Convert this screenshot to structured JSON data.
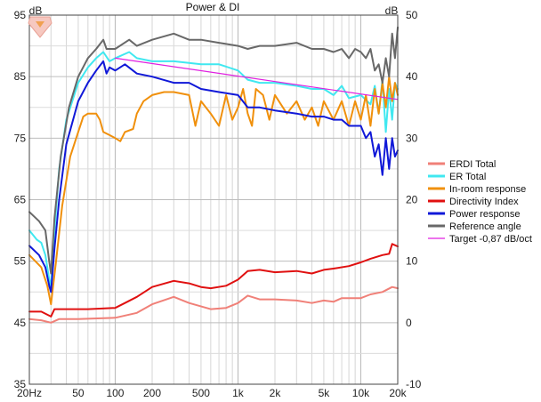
{
  "chart_data": {
    "type": "line",
    "title": "Power & DI",
    "ylabel_left": "dB",
    "ylabel_right": "dB",
    "x_scale": "log",
    "xlim": [
      20,
      20000
    ],
    "ylim_left": [
      35,
      95
    ],
    "ylim_right": [
      -10,
      50
    ],
    "grid": true,
    "legend_position": "right",
    "x_ticks": [
      {
        "v": 20,
        "label": "20Hz"
      },
      {
        "v": 50,
        "label": "50"
      },
      {
        "v": 100,
        "label": "100"
      },
      {
        "v": 200,
        "label": "200"
      },
      {
        "v": 500,
        "label": "500"
      },
      {
        "v": 1000,
        "label": "1k"
      },
      {
        "v": 2000,
        "label": "2k"
      },
      {
        "v": 5000,
        "label": "5k"
      },
      {
        "v": 10000,
        "label": "10k"
      },
      {
        "v": 20000,
        "label": "20k"
      }
    ],
    "y_ticks_left": [
      35,
      45,
      55,
      65,
      75,
      85,
      95
    ],
    "y_ticks_right": [
      -10,
      0,
      10,
      20,
      30,
      40,
      50
    ],
    "series": [
      {
        "name": "ERDI Total",
        "axis": "right",
        "color": "#f08078",
        "width": 2,
        "points": [
          [
            20,
            0.6
          ],
          [
            25,
            0.4
          ],
          [
            30,
            0.0
          ],
          [
            35,
            0.6
          ],
          [
            50,
            0.6
          ],
          [
            100,
            0.8
          ],
          [
            150,
            1.6
          ],
          [
            200,
            3.0
          ],
          [
            300,
            4.2
          ],
          [
            400,
            3.2
          ],
          [
            600,
            2.2
          ],
          [
            800,
            2.4
          ],
          [
            1000,
            3.2
          ],
          [
            1200,
            4.4
          ],
          [
            1500,
            3.8
          ],
          [
            2000,
            3.8
          ],
          [
            3000,
            3.6
          ],
          [
            4000,
            3.2
          ],
          [
            5000,
            3.6
          ],
          [
            6000,
            3.4
          ],
          [
            7000,
            4.0
          ],
          [
            10000,
            4.0
          ],
          [
            12000,
            4.6
          ],
          [
            15000,
            5.0
          ],
          [
            18000,
            5.8
          ],
          [
            20000,
            5.6
          ]
        ]
      },
      {
        "name": "ER Total",
        "axis": "left",
        "color": "#40e8f0",
        "width": 2,
        "points": [
          [
            20,
            60
          ],
          [
            23,
            58.5
          ],
          [
            25,
            58
          ],
          [
            27,
            56
          ],
          [
            29,
            52
          ],
          [
            30,
            51
          ],
          [
            32,
            60
          ],
          [
            35,
            70
          ],
          [
            40,
            78
          ],
          [
            50,
            84
          ],
          [
            60,
            86.5
          ],
          [
            70,
            88
          ],
          [
            80,
            89
          ],
          [
            90,
            87.5
          ],
          [
            100,
            88
          ],
          [
            130,
            89
          ],
          [
            150,
            88
          ],
          [
            200,
            87.5
          ],
          [
            300,
            87.5
          ],
          [
            500,
            87
          ],
          [
            700,
            87
          ],
          [
            1000,
            86
          ],
          [
            1200,
            84.5
          ],
          [
            1500,
            84
          ],
          [
            2000,
            84
          ],
          [
            3000,
            83.5
          ],
          [
            4000,
            83
          ],
          [
            5000,
            83
          ],
          [
            6000,
            82
          ],
          [
            7000,
            83.5
          ],
          [
            8000,
            81.5
          ],
          [
            10000,
            82
          ],
          [
            12000,
            80.5
          ],
          [
            13000,
            83.5
          ],
          [
            14000,
            79
          ],
          [
            15000,
            84.5
          ],
          [
            16000,
            76
          ],
          [
            17000,
            83
          ],
          [
            18000,
            78
          ],
          [
            19000,
            84
          ],
          [
            20000,
            83
          ]
        ]
      },
      {
        "name": "In-room response",
        "axis": "left",
        "color": "#f0900c",
        "width": 2,
        "points": [
          [
            20,
            56
          ],
          [
            25,
            54
          ],
          [
            28,
            51
          ],
          [
            30,
            48
          ],
          [
            33,
            55
          ],
          [
            37,
            64
          ],
          [
            43,
            72
          ],
          [
            50,
            76
          ],
          [
            55,
            78.5
          ],
          [
            60,
            79
          ],
          [
            70,
            79
          ],
          [
            75,
            78
          ],
          [
            80,
            76
          ],
          [
            90,
            75.5
          ],
          [
            100,
            75
          ],
          [
            110,
            74.5
          ],
          [
            120,
            76
          ],
          [
            140,
            76.5
          ],
          [
            150,
            79
          ],
          [
            170,
            81
          ],
          [
            200,
            82
          ],
          [
            250,
            82.5
          ],
          [
            300,
            82.5
          ],
          [
            400,
            82
          ],
          [
            450,
            77
          ],
          [
            500,
            81
          ],
          [
            600,
            79
          ],
          [
            700,
            77
          ],
          [
            800,
            82
          ],
          [
            900,
            78
          ],
          [
            1000,
            80
          ],
          [
            1100,
            83
          ],
          [
            1200,
            79
          ],
          [
            1300,
            77
          ],
          [
            1400,
            83
          ],
          [
            1600,
            82
          ],
          [
            1800,
            78
          ],
          [
            2000,
            82
          ],
          [
            2500,
            79
          ],
          [
            3000,
            81
          ],
          [
            3500,
            78
          ],
          [
            4000,
            80
          ],
          [
            4500,
            77
          ],
          [
            5000,
            81
          ],
          [
            6000,
            78
          ],
          [
            7000,
            81
          ],
          [
            8000,
            77
          ],
          [
            9000,
            81
          ],
          [
            10000,
            78
          ],
          [
            11000,
            82
          ],
          [
            12000,
            77
          ],
          [
            13000,
            83
          ],
          [
            14000,
            79
          ],
          [
            15000,
            84
          ],
          [
            16000,
            80
          ],
          [
            17000,
            85
          ],
          [
            18000,
            81
          ],
          [
            19000,
            84
          ],
          [
            20000,
            82
          ]
        ]
      },
      {
        "name": "Directivity Index",
        "axis": "right",
        "color": "#e01010",
        "width": 2,
        "points": [
          [
            20,
            1.8
          ],
          [
            25,
            1.8
          ],
          [
            30,
            1.0
          ],
          [
            32,
            2.2
          ],
          [
            40,
            2.2
          ],
          [
            60,
            2.2
          ],
          [
            100,
            2.4
          ],
          [
            120,
            3.2
          ],
          [
            150,
            4.2
          ],
          [
            200,
            5.8
          ],
          [
            300,
            6.8
          ],
          [
            400,
            6.4
          ],
          [
            500,
            5.8
          ],
          [
            600,
            5.6
          ],
          [
            800,
            6.0
          ],
          [
            1000,
            7.0
          ],
          [
            1200,
            8.4
          ],
          [
            1500,
            8.6
          ],
          [
            2000,
            8.2
          ],
          [
            3000,
            8.4
          ],
          [
            4000,
            8.0
          ],
          [
            5000,
            8.6
          ],
          [
            6000,
            8.8
          ],
          [
            8000,
            9.2
          ],
          [
            10000,
            9.8
          ],
          [
            12000,
            10.4
          ],
          [
            15000,
            11.0
          ],
          [
            17000,
            11.2
          ],
          [
            18000,
            12.8
          ],
          [
            20000,
            12.4
          ]
        ]
      },
      {
        "name": "Power response",
        "axis": "left",
        "color": "#1018d8",
        "width": 2,
        "points": [
          [
            20,
            57.5
          ],
          [
            24,
            56
          ],
          [
            27,
            54
          ],
          [
            29,
            51
          ],
          [
            30,
            50
          ],
          [
            32,
            57
          ],
          [
            35,
            65
          ],
          [
            40,
            74
          ],
          [
            50,
            81
          ],
          [
            60,
            84
          ],
          [
            70,
            86
          ],
          [
            80,
            87.5
          ],
          [
            85,
            85.5
          ],
          [
            90,
            86.5
          ],
          [
            100,
            86
          ],
          [
            120,
            87
          ],
          [
            150,
            85.5
          ],
          [
            200,
            85
          ],
          [
            300,
            84
          ],
          [
            400,
            84
          ],
          [
            500,
            83
          ],
          [
            700,
            82.5
          ],
          [
            1000,
            82
          ],
          [
            1200,
            80
          ],
          [
            1500,
            80
          ],
          [
            2000,
            79.5
          ],
          [
            3000,
            79
          ],
          [
            4000,
            78.5
          ],
          [
            5000,
            78.5
          ],
          [
            6000,
            78
          ],
          [
            7000,
            78
          ],
          [
            8000,
            77
          ],
          [
            10000,
            77
          ],
          [
            11000,
            75
          ],
          [
            12000,
            76
          ],
          [
            13000,
            72
          ],
          [
            14000,
            74
          ],
          [
            15000,
            69
          ],
          [
            16000,
            75
          ],
          [
            17000,
            70
          ],
          [
            18000,
            75
          ],
          [
            19000,
            72
          ],
          [
            20000,
            73
          ]
        ]
      },
      {
        "name": "Reference angle",
        "axis": "left",
        "color": "#686868",
        "width": 2,
        "points": [
          [
            20,
            63
          ],
          [
            24,
            61.5
          ],
          [
            27,
            60
          ],
          [
            29,
            55
          ],
          [
            30,
            53
          ],
          [
            32,
            62
          ],
          [
            36,
            72
          ],
          [
            42,
            80
          ],
          [
            50,
            85
          ],
          [
            60,
            88
          ],
          [
            70,
            89.5
          ],
          [
            80,
            91
          ],
          [
            85,
            89.5
          ],
          [
            100,
            89.5
          ],
          [
            130,
            91
          ],
          [
            150,
            90
          ],
          [
            200,
            91
          ],
          [
            300,
            92
          ],
          [
            400,
            91
          ],
          [
            500,
            91
          ],
          [
            700,
            90.5
          ],
          [
            1000,
            90
          ],
          [
            1200,
            89.5
          ],
          [
            1500,
            90
          ],
          [
            2000,
            90
          ],
          [
            3000,
            90.5
          ],
          [
            4000,
            89.5
          ],
          [
            5000,
            89.5
          ],
          [
            6000,
            89
          ],
          [
            7000,
            89.5
          ],
          [
            8000,
            88
          ],
          [
            9000,
            89.5
          ],
          [
            10000,
            89
          ],
          [
            11000,
            88
          ],
          [
            12000,
            89.5
          ],
          [
            13000,
            86
          ],
          [
            14000,
            87
          ],
          [
            15000,
            84
          ],
          [
            16000,
            88
          ],
          [
            17000,
            85
          ],
          [
            18000,
            92
          ],
          [
            19000,
            88
          ],
          [
            20000,
            93
          ]
        ]
      },
      {
        "name": "Target -0,87 dB/oct",
        "axis": "left",
        "color": "#e020e0",
        "width": 1.2,
        "points": [
          [
            100,
            88
          ],
          [
            20000,
            81.3
          ]
        ]
      }
    ]
  }
}
